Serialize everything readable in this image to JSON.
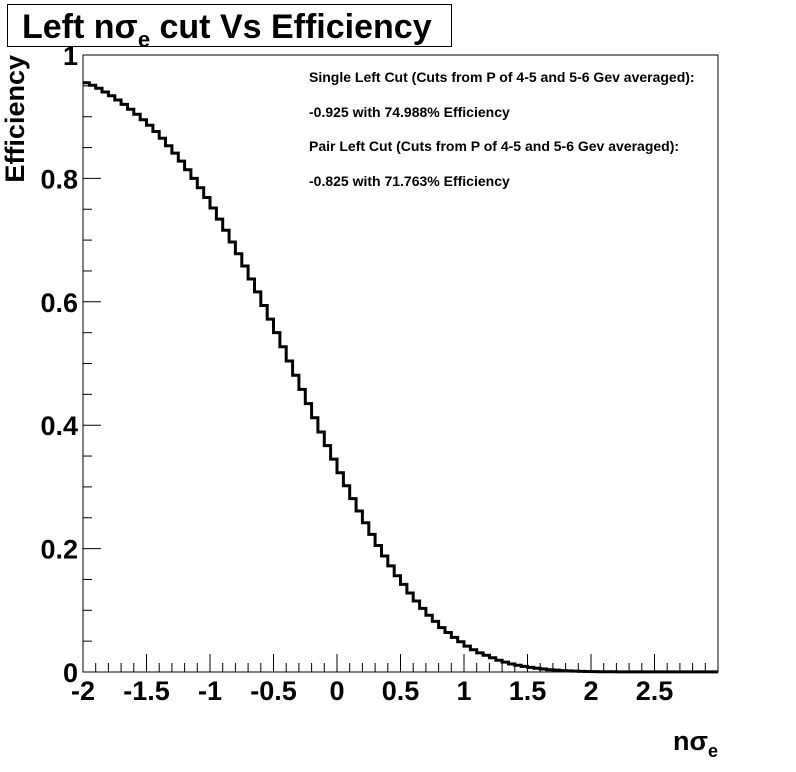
{
  "chart_data": {
    "type": "line",
    "style": "step",
    "title": {
      "pre": "Left n",
      "greek": "σ",
      "sub": "e",
      "post": " cut Vs Efficiency"
    },
    "xlabel": {
      "pre": "n",
      "greek": "σ",
      "sub": "e"
    },
    "ylabel": "Efficiency",
    "xlim": [
      -2,
      3
    ],
    "ylim": [
      0,
      1
    ],
    "x_major_ticks": [
      -2,
      -1.5,
      -1,
      -0.5,
      0,
      0.5,
      1,
      1.5,
      2,
      2.5
    ],
    "x_tick_labels": [
      "-2",
      "-1.5",
      "-1",
      "-0.5",
      "0",
      "0.5",
      "1",
      "1.5",
      "2",
      "2.5"
    ],
    "y_major_ticks": [
      0,
      0.2,
      0.4,
      0.6,
      0.8,
      1
    ],
    "y_tick_labels": [
      "0",
      "0.2",
      "0.4",
      "0.6",
      "0.8",
      "1"
    ],
    "grid": false,
    "line_color": "#000000",
    "annotations": [
      "Single Left Cut (Cuts from P of 4-5 and 5-6 Gev averaged):",
      " -0.925 with 74.988% Efficiency",
      "Pair Left Cut (Cuts from P of 4-5 and 5-6 Gev averaged):",
      " -0.825 with 71.763% Efficiency"
    ],
    "bin_width": 0.05,
    "bin_start": -2,
    "values": [
      0.955,
      0.951,
      0.946,
      0.94,
      0.934,
      0.927,
      0.92,
      0.912,
      0.904,
      0.895,
      0.886,
      0.876,
      0.865,
      0.853,
      0.841,
      0.828,
      0.814,
      0.8,
      0.785,
      0.769,
      0.752,
      0.734,
      0.716,
      0.697,
      0.678,
      0.658,
      0.637,
      0.616,
      0.594,
      0.572,
      0.55,
      0.527,
      0.504,
      0.481,
      0.458,
      0.435,
      0.412,
      0.389,
      0.367,
      0.345,
      0.323,
      0.302,
      0.281,
      0.261,
      0.242,
      0.223,
      0.205,
      0.188,
      0.172,
      0.156,
      0.142,
      0.128,
      0.115,
      0.103,
      0.092,
      0.082,
      0.072,
      0.064,
      0.056,
      0.049,
      0.042,
      0.036,
      0.031,
      0.027,
      0.023,
      0.019,
      0.016,
      0.013,
      0.011,
      0.009,
      0.0075,
      0.006,
      0.0048,
      0.0038,
      0.003,
      0.0023,
      0.0018,
      0.0014,
      0.001,
      0.0008,
      0.0006,
      0.0005,
      0.0004,
      0.0003,
      0.0002,
      0.0002,
      0.0001,
      0.0001,
      0.0001,
      0.0001,
      0.0001,
      0.0001,
      0.0001,
      0.0001,
      0.0001,
      0.0001,
      0.0001,
      0.0001,
      0.0001,
      0.0001
    ]
  }
}
